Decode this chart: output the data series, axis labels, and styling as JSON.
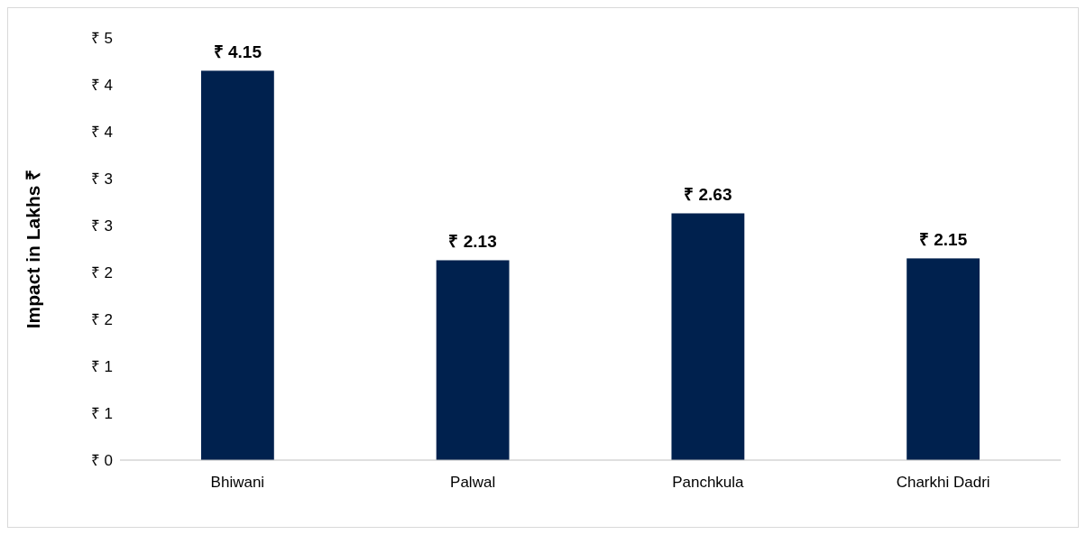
{
  "chart_data": {
    "type": "bar",
    "ylabel": "Impact in Lakhs ₹",
    "categories": [
      "Bhiwani",
      "Palwal",
      "Panchkula",
      "Charkhi Dadri"
    ],
    "values": [
      4.15,
      2.13,
      2.63,
      2.15
    ],
    "color": "#00214e",
    "value_labels": [
      "₹ 4.15",
      "₹ 2.13",
      "₹ 2.63",
      "₹ 2.15"
    ],
    "ylim": [
      0,
      4.5
    ],
    "yticks": [
      {
        "value": 0,
        "label": "₹ 0"
      },
      {
        "value": 0.5,
        "label": "₹ 1"
      },
      {
        "value": 1,
        "label": "₹ 1"
      },
      {
        "value": 1.5,
        "label": "₹ 2"
      },
      {
        "value": 2,
        "label": "₹ 2"
      },
      {
        "value": 2.5,
        "label": "₹ 3"
      },
      {
        "value": 3,
        "label": "₹ 3"
      },
      {
        "value": 3.5,
        "label": "₹ 4"
      },
      {
        "value": 4,
        "label": "₹ 4"
      },
      {
        "value": 4.5,
        "label": "₹ 5"
      }
    ],
    "grid": false
  }
}
